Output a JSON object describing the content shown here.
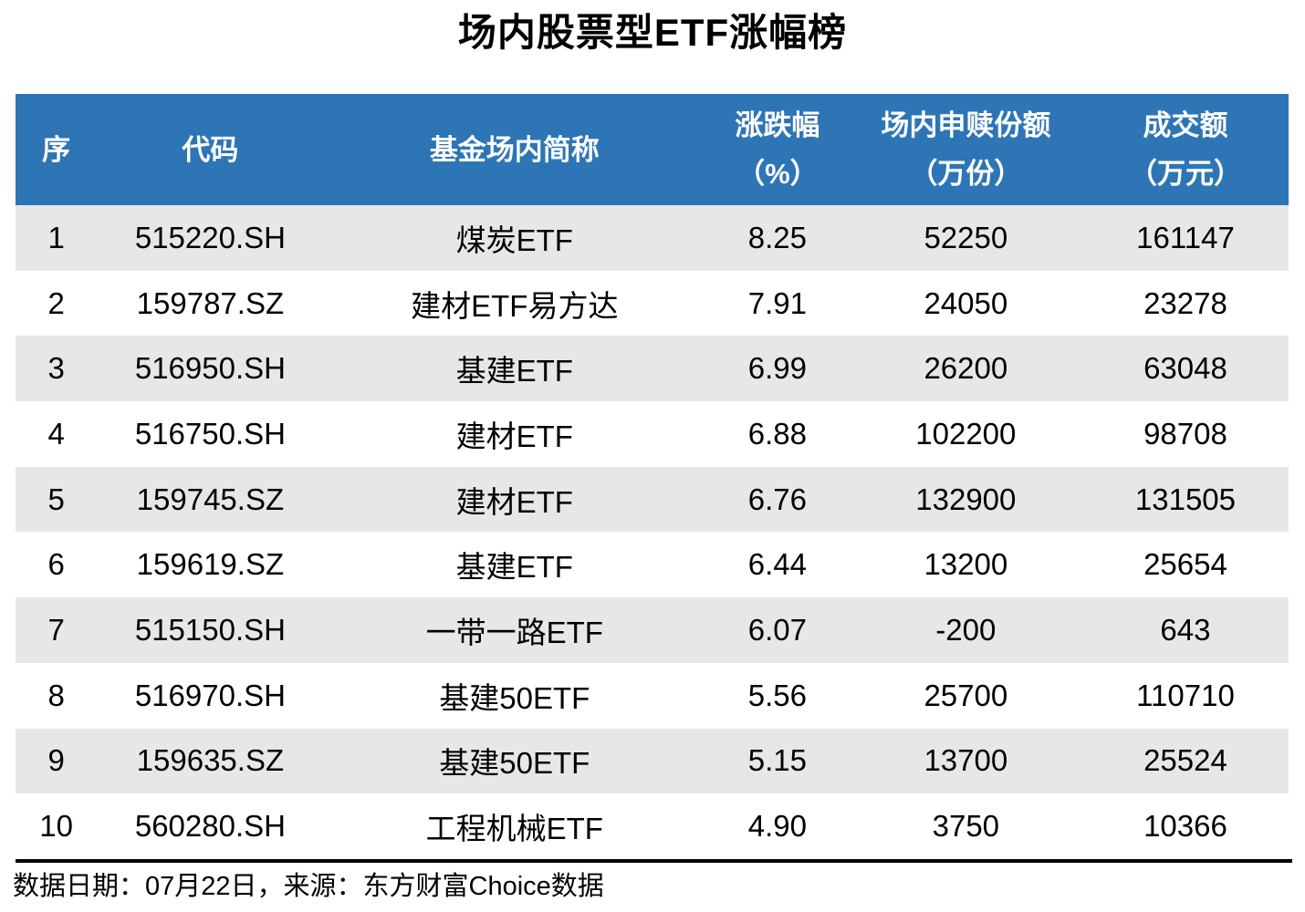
{
  "title": "场内股票型ETF涨幅榜",
  "colors": {
    "header_bg": "#2E75B6",
    "stripe_bg": "#E7E7E7",
    "header_text": "#FFFFFF",
    "body_text": "#000000"
  },
  "chart_data": {
    "type": "table",
    "title": "场内股票型ETF涨幅榜",
    "columns": [
      {
        "line1": "序",
        "line2": ""
      },
      {
        "line1": "代码",
        "line2": ""
      },
      {
        "line1": "基金场内简称",
        "line2": ""
      },
      {
        "line1": "涨跌幅",
        "line2": "（%）"
      },
      {
        "line1": "场内申赎份额",
        "line2": "（万份）"
      },
      {
        "line1": "成交额",
        "line2": "（万元）"
      }
    ],
    "rows": [
      [
        "1",
        "515220.SH",
        "煤炭ETF",
        "8.25",
        "52250",
        "161147"
      ],
      [
        "2",
        "159787.SZ",
        "建材ETF易方达",
        "7.91",
        "24050",
        "23278"
      ],
      [
        "3",
        "516950.SH",
        "基建ETF",
        "6.99",
        "26200",
        "63048"
      ],
      [
        "4",
        "516750.SH",
        "建材ETF",
        "6.88",
        "102200",
        "98708"
      ],
      [
        "5",
        "159745.SZ",
        "建材ETF",
        "6.76",
        "132900",
        "131505"
      ],
      [
        "6",
        "159619.SZ",
        "基建ETF",
        "6.44",
        "13200",
        "25654"
      ],
      [
        "7",
        "515150.SH",
        "一带一路ETF",
        "6.07",
        "-200",
        "643"
      ],
      [
        "8",
        "516970.SH",
        "基建50ETF",
        "5.56",
        "25700",
        "110710"
      ],
      [
        "9",
        "159635.SZ",
        "基建50ETF",
        "5.15",
        "13700",
        "25524"
      ],
      [
        "10",
        "560280.SH",
        "工程机械ETF",
        "4.90",
        "3750",
        "10366"
      ]
    ],
    "stripe_rows": "odd rows (1,3,5,7,9) shaded gray",
    "legend_position": "none",
    "grid": false
  },
  "footer": {
    "source_text": "数据日期：07月22日，来源：东方财富Choice数据"
  }
}
